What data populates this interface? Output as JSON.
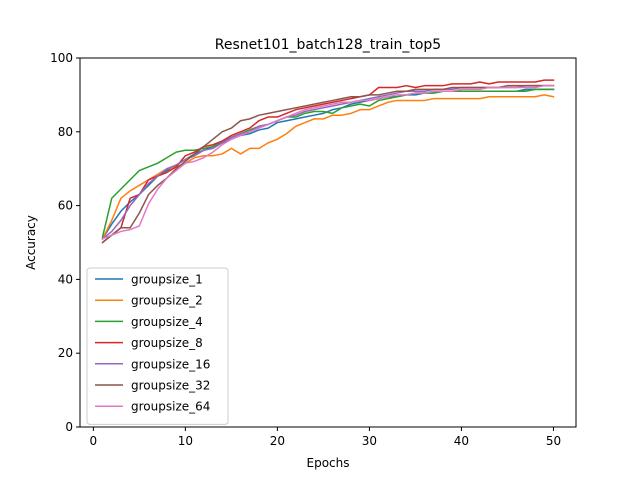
{
  "chart_data": {
    "type": "line",
    "title": "Resnet101_batch128_train_top5",
    "xlabel": "Epochs",
    "ylabel": "Accuracy",
    "xlim": [
      -1.45,
      52.45
    ],
    "ylim": [
      0,
      100
    ],
    "xticks": [
      0,
      10,
      20,
      30,
      40,
      50
    ],
    "yticks": [
      0,
      20,
      40,
      60,
      80,
      100
    ],
    "grid": false,
    "legend_position": "lower-left",
    "x": [
      1,
      2,
      3,
      4,
      5,
      6,
      7,
      8,
      9,
      10,
      11,
      12,
      13,
      14,
      15,
      16,
      17,
      18,
      19,
      20,
      21,
      22,
      23,
      24,
      25,
      26,
      27,
      28,
      29,
      30,
      31,
      32,
      33,
      34,
      35,
      36,
      37,
      38,
      39,
      40,
      41,
      42,
      43,
      44,
      45,
      46,
      47,
      48,
      49,
      50
    ],
    "series": [
      {
        "name": "groupsize_1",
        "color": "#1f77b4",
        "values": [
          51,
          55,
          58.5,
          61,
          63,
          65.5,
          68,
          69.5,
          71,
          72.5,
          74,
          75,
          76,
          77,
          78,
          79,
          79.5,
          80.5,
          81,
          82.5,
          83,
          83.5,
          84,
          84.5,
          85,
          86,
          86.5,
          87.5,
          88,
          88.5,
          89,
          89.5,
          89.5,
          90,
          90,
          90.5,
          90.5,
          91,
          91,
          91,
          91,
          91,
          91,
          91,
          91,
          91,
          91.5,
          91.5,
          91.5,
          91.5
        ]
      },
      {
        "name": "groupsize_2",
        "color": "#ff7f0e",
        "values": [
          51,
          56,
          62,
          64,
          65.5,
          67,
          68.5,
          70,
          70.5,
          71.5,
          73,
          73.5,
          73.5,
          74,
          75.5,
          74,
          75.5,
          75.5,
          77,
          78,
          79.5,
          81.5,
          82.5,
          83.5,
          83.5,
          84.5,
          84.5,
          85,
          86,
          86,
          87,
          88,
          88.5,
          88.5,
          88.5,
          88.5,
          89,
          89,
          89,
          89,
          89,
          89,
          89.5,
          89.5,
          89.5,
          89.5,
          89.5,
          89.5,
          90,
          89.5
        ]
      },
      {
        "name": "groupsize_4",
        "color": "#2ca02c",
        "values": [
          51.5,
          62,
          64.5,
          67,
          69.5,
          70.5,
          71.5,
          73,
          74.5,
          75,
          75,
          75.5,
          76,
          77.5,
          78.5,
          79.5,
          80.5,
          81.5,
          82,
          83,
          84,
          84,
          85,
          85.5,
          85.5,
          85,
          86.5,
          87,
          87.5,
          87,
          88.5,
          89,
          89.5,
          90,
          90.5,
          90.5,
          90.5,
          91,
          91,
          91,
          91,
          91,
          91,
          91,
          91,
          91,
          91,
          91.5,
          91.5,
          91.5
        ]
      },
      {
        "name": "groupsize_8",
        "color": "#d62728",
        "values": [
          50,
          52,
          54,
          62,
          63,
          67,
          68,
          69,
          70.5,
          73.5,
          74.5,
          76,
          76.5,
          77.5,
          79,
          80,
          81,
          83,
          84,
          84,
          85,
          86,
          86.5,
          87,
          87.5,
          88,
          88.5,
          89,
          89.5,
          90,
          92,
          92,
          92,
          92.5,
          92,
          92.5,
          92.5,
          92.5,
          93,
          93,
          93,
          93.5,
          93,
          93.5,
          93.5,
          93.5,
          93.5,
          93.5,
          94,
          94
        ]
      },
      {
        "name": "groupsize_16",
        "color": "#9467bd",
        "values": [
          51,
          53,
          56,
          60,
          63,
          66,
          68,
          70,
          71,
          72.5,
          73.5,
          75,
          75.5,
          77,
          78.5,
          79.5,
          80,
          81.5,
          82,
          83,
          84,
          84.5,
          85.5,
          86,
          86.5,
          87,
          87.5,
          88,
          88.5,
          89,
          89.5,
          90,
          90.5,
          91,
          91,
          91,
          91.5,
          91.5,
          91.5,
          92,
          92,
          92,
          92,
          92,
          92,
          92,
          92.5,
          92.5,
          92.5,
          92.5
        ]
      },
      {
        "name": "groupsize_32",
        "color": "#8c564b",
        "values": [
          50,
          52,
          54,
          54,
          58,
          63,
          65.5,
          67.5,
          70,
          72,
          74,
          76,
          78,
          80,
          81,
          83,
          83.5,
          84.5,
          85,
          85.5,
          86,
          86.5,
          87,
          87.5,
          88,
          88.5,
          89,
          89.5,
          89.5,
          90,
          90,
          90.5,
          91,
          91,
          91.5,
          91.5,
          91.5,
          91.5,
          92,
          92,
          92,
          92,
          92,
          92,
          92.5,
          92.5,
          92.5,
          92.5,
          92.5,
          92.5
        ]
      },
      {
        "name": "groupsize_64",
        "color": "#e377c2",
        "values": [
          51,
          52,
          53,
          53.5,
          54.5,
          60.5,
          64.5,
          67.5,
          69.5,
          71.5,
          72,
          73,
          74.5,
          76.5,
          78,
          79,
          80,
          81,
          82,
          83,
          84,
          85,
          86,
          86.5,
          87,
          87.5,
          88,
          88,
          88.5,
          88.5,
          89,
          89.5,
          90,
          90,
          90.5,
          90.5,
          91,
          91,
          91,
          91.5,
          91.5,
          91.5,
          92,
          92,
          92,
          92,
          92,
          92,
          92.5,
          92.5
        ]
      }
    ]
  }
}
